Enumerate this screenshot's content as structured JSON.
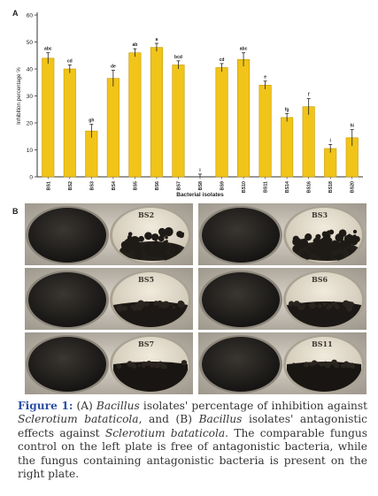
{
  "panel_a_label": "A",
  "panel_b_label": "B",
  "chart_data": {
    "type": "bar",
    "xlabel": "Bacterial isolates",
    "ylabel": "Inhibition percentage %",
    "ylim": [
      0,
      60
    ],
    "yticks": [
      0,
      10,
      20,
      30,
      40,
      50,
      60
    ],
    "categories": [
      "BS1",
      "BS2",
      "BS3",
      "BS4",
      "BS5",
      "BS6",
      "BS7",
      "BS8",
      "BS9",
      "BS10",
      "BS11",
      "BS14",
      "BS16",
      "BS18",
      "BS20"
    ],
    "values": [
      44,
      40,
      17,
      36.5,
      46,
      48,
      41.5,
      0,
      40.5,
      43.5,
      34,
      22,
      26,
      10.5,
      14.5
    ],
    "errors": [
      2,
      1.5,
      2.5,
      3,
      1.5,
      1.5,
      1.5,
      1,
      1.5,
      2.5,
      1.5,
      1.5,
      3,
      1.5,
      3
    ],
    "letters": [
      "abc",
      "cd",
      "gh",
      "de",
      "ab",
      "a",
      "bcd",
      "i",
      "cd",
      "abc",
      "e",
      "fg",
      "f",
      "i",
      "hi"
    ],
    "bar_color": "#f0c419",
    "bar_edge": "#c99a00",
    "grid": false,
    "legend": "none"
  },
  "plates": [
    {
      "label": "BS2",
      "type": "sparse"
    },
    {
      "label": "BS3",
      "type": "sparse"
    },
    {
      "label": "BS5",
      "type": "band"
    },
    {
      "label": "BS6",
      "type": "band"
    },
    {
      "label": "BS7",
      "type": "band_low"
    },
    {
      "label": "BS11",
      "type": "band_low"
    }
  ],
  "caption": {
    "fig_label": "Figure 1:",
    "p1": " (A) ",
    "i1": "Bacillus",
    "p2": " isolates' percentage of inhibition against ",
    "i2": "Sclerotium bataticola",
    "p3": ", and (B) ",
    "i3": "Bacillus",
    "p4": " isolates' antagonistic effects against ",
    "i4": "Sclerotium bataticola",
    "p5": ". The comparable fungus control on the left plate is free of antagonistic bacteria, while the fungus containing antagonistic bacteria is present on the right plate."
  }
}
